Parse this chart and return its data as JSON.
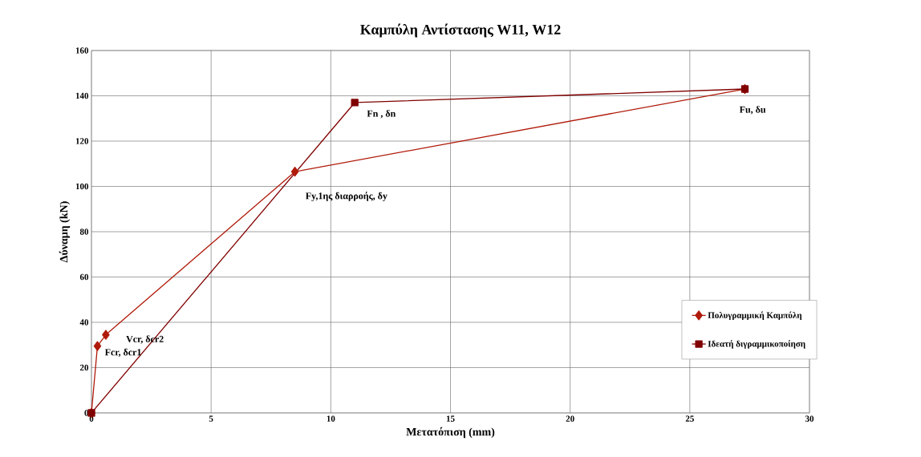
{
  "chart_data": {
    "type": "line",
    "title": "Καμπύλη Αντίστασης W11, W12",
    "xlabel": "Μετατόπιση (mm)",
    "ylabel": "Δύναμη (kN)",
    "xlim": [
      0,
      30
    ],
    "xticks": [
      0,
      5,
      10,
      15,
      20,
      25,
      30
    ],
    "ylim": [
      0,
      160
    ],
    "yticks": [
      0,
      20,
      40,
      60,
      80,
      100,
      120,
      140,
      160
    ],
    "grid": true,
    "legend": "right",
    "series": [
      {
        "name": "Πολυγραμμική Καμπύλη",
        "color": "#b01a0a",
        "marker": "diamond",
        "x": [
          0,
          0.25,
          0.6,
          8.5,
          27.3
        ],
        "values": [
          0,
          29.5,
          34.5,
          106.5,
          143
        ]
      },
      {
        "name": "Ιδεατή διγραμμικοποίηση",
        "color": "#800000",
        "marker": "square",
        "x": [
          0,
          11,
          27.3
        ],
        "values": [
          0,
          137,
          143
        ]
      }
    ],
    "annotations": [
      {
        "text": "Fcr,  δcr1",
        "x": 0.25,
        "y": 29.5
      },
      {
        "text": "Vcr,  δcr2",
        "x": 0.6,
        "y": 34.5
      },
      {
        "text": "Fy,1ης διαρροής,  δy",
        "x": 8.5,
        "y": 106.5
      },
      {
        "text": "Fn , δn",
        "x": 11,
        "y": 137
      },
      {
        "text": "Fu,  δu",
        "x": 27.3,
        "y": 143
      }
    ]
  }
}
